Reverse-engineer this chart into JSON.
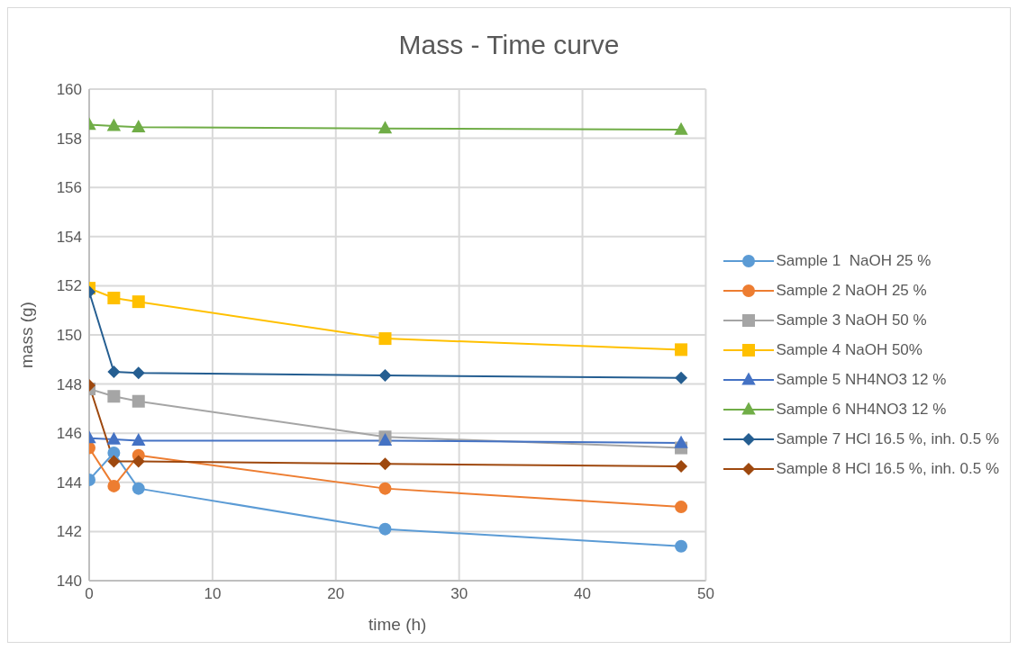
{
  "chart_data": {
    "type": "line",
    "title": "Mass - Time curve",
    "xlabel": "time (h)",
    "ylabel": "mass (g)",
    "x": [
      0,
      2,
      4,
      24,
      48
    ],
    "series": [
      {
        "name": "Sample 1  NaOH 25 %",
        "color": "#5b9bd5",
        "marker": "circle",
        "values": [
          144.1,
          145.2,
          143.75,
          142.1,
          141.4
        ]
      },
      {
        "name": "Sample 2 NaOH 25 %",
        "color": "#ed7d31",
        "marker": "circle",
        "values": [
          145.4,
          143.85,
          145.1,
          143.75,
          143.0
        ]
      },
      {
        "name": "Sample 3 NaOH 50 %",
        "color": "#a5a5a5",
        "marker": "square",
        "values": [
          147.8,
          147.5,
          147.3,
          145.85,
          145.4
        ]
      },
      {
        "name": "Sample 4 NaOH 50%",
        "color": "#ffc000",
        "marker": "square",
        "values": [
          151.9,
          151.5,
          151.35,
          149.85,
          149.4
        ]
      },
      {
        "name": "Sample 5 NH4NO3 12 %",
        "color": "#4472c4",
        "marker": "triangle",
        "values": [
          145.8,
          145.75,
          145.7,
          145.7,
          145.6
        ]
      },
      {
        "name": "Sample 6 NH4NO3 12 %",
        "color": "#70ad47",
        "marker": "triangle",
        "values": [
          158.55,
          158.5,
          158.45,
          158.4,
          158.35
        ]
      },
      {
        "name": "Sample 7 HCl 16.5 %, inh. 0.5 %",
        "color": "#255e91",
        "marker": "diamond",
        "values": [
          151.75,
          148.5,
          148.45,
          148.35,
          148.25
        ]
      },
      {
        "name": "Sample 8 HCl 16.5 %, inh. 0.5 %",
        "color": "#9e480e",
        "marker": "diamond",
        "values": [
          147.95,
          144.85,
          144.85,
          144.75,
          144.65
        ]
      }
    ],
    "xlim": [
      0,
      50
    ],
    "xticks": [
      0,
      10,
      20,
      30,
      40,
      50
    ],
    "ylim": [
      140,
      160
    ],
    "yticks": [
      140,
      142,
      144,
      146,
      148,
      150,
      152,
      154,
      156,
      158,
      160
    ],
    "grid": true,
    "legend": "right",
    "line_style": "solid"
  }
}
